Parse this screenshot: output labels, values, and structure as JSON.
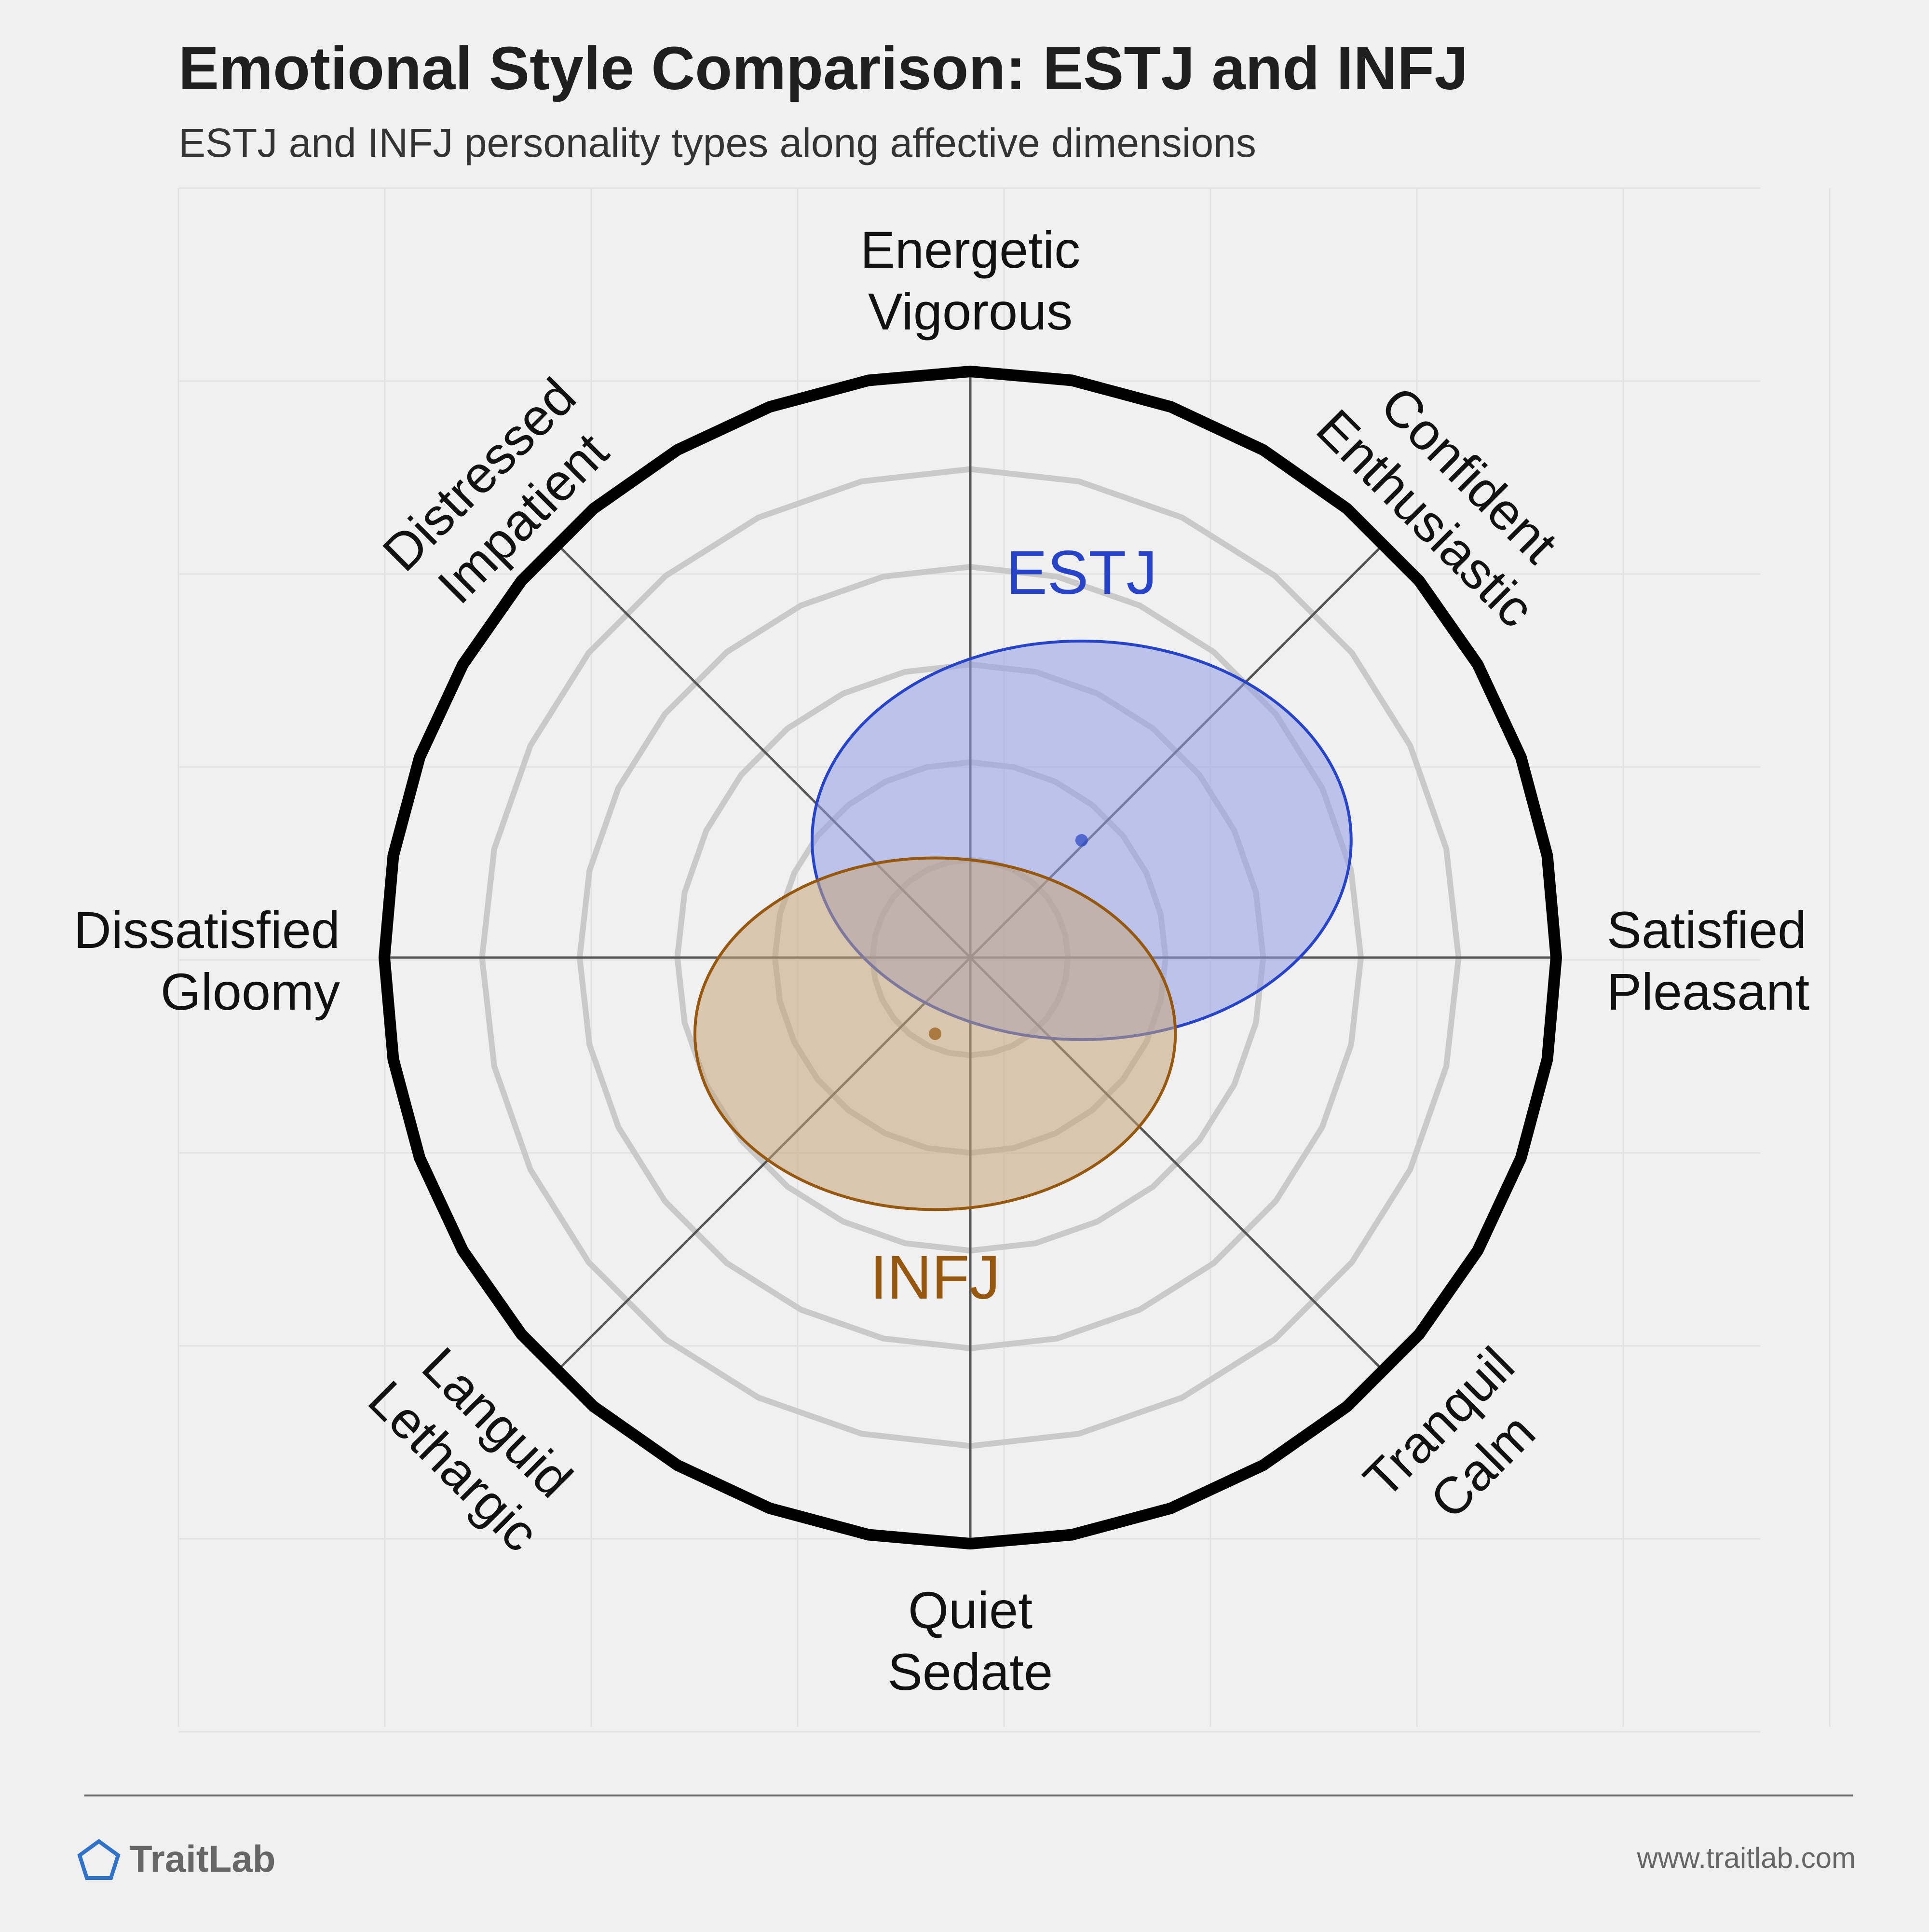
{
  "chart_data": {
    "type": "scatter",
    "title": "Emotional Style Comparison: ESTJ and INFJ",
    "subtitle": "ESTJ and INFJ personality types along affective dimensions",
    "axes": {
      "x": {
        "negative_label": [
          "Dissatisfied",
          "Gloomy"
        ],
        "positive_label": [
          "Satisfied",
          "Pleasant"
        ],
        "range": [
          -1,
          1
        ]
      },
      "y": {
        "negative_label": [
          "Quiet",
          "Sedate"
        ],
        "positive_label": [
          "Energetic",
          "Vigorous"
        ],
        "range": [
          -1,
          1
        ]
      }
    },
    "diagonal_labels": {
      "top_right": [
        "Confident",
        "Enthusiastic"
      ],
      "top_left": [
        "Distressed",
        "Impatient"
      ],
      "bottom_left": [
        "Languid",
        "Lethargic"
      ],
      "bottom_right": [
        "Tranquil",
        "Calm"
      ]
    },
    "rings": 6,
    "grid": true,
    "series": [
      {
        "name": "ESTJ",
        "color": "#2743c8",
        "fill": "#8f9ee6",
        "x": 0.19,
        "y": 0.2,
        "spread_x": 0.46,
        "spread_y": 0.34
      },
      {
        "name": "INFJ",
        "color": "#96580f",
        "fill": "#c7a47a",
        "x": -0.06,
        "y": -0.13,
        "spread_x": 0.41,
        "spread_y": 0.3
      }
    ]
  },
  "footer": {
    "brand": "TraitLab",
    "url": "www.traitlab.com",
    "logo_icon": "pentagon-icon"
  }
}
